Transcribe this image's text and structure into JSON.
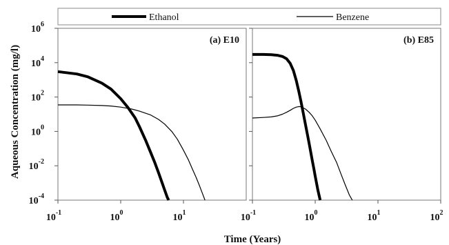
{
  "chart_data": {
    "type": "line",
    "xlabel": "Time (Years)",
    "ylabel": "Aqueous Concentration (mg/l)",
    "x_scale": "log",
    "y_scale": "log",
    "legend": {
      "position": "top",
      "entries": [
        {
          "name": "Ethanol",
          "line": "thick"
        },
        {
          "name": "Benzene",
          "line": "thin"
        }
      ]
    },
    "x_tick_labels": [
      {
        "base": "10",
        "exp": "-1"
      },
      {
        "base": "10",
        "exp": "0"
      },
      {
        "base": "10",
        "exp": "1"
      },
      {
        "base": "10",
        "exp": "2"
      }
    ],
    "y_tick_labels": [
      {
        "base": "10",
        "exp": "6"
      },
      {
        "base": "10",
        "exp": "4"
      },
      {
        "base": "10",
        "exp": "2"
      },
      {
        "base": "10",
        "exp": "0"
      },
      {
        "base": "10",
        "exp": "-2"
      },
      {
        "base": "10",
        "exp": "-4"
      }
    ],
    "panels": [
      {
        "label": "(a) E10",
        "xlim": [
          0.1,
          100
        ],
        "ylim": [
          0.0001,
          1000000
        ],
        "x_ticks": [
          0.1,
          1,
          10
        ],
        "y_ticks": [
          0.0001,
          0.01,
          1,
          100,
          10000,
          1000000
        ],
        "series": [
          {
            "name": "Ethanol",
            "x": [
              0.1,
              0.2,
              0.3,
              0.5,
              0.7,
              1.0,
              1.3,
              1.7,
              2.0,
              2.5,
              3.0,
              3.5,
              4.0,
              4.5,
              5.0,
              5.5,
              5.8
            ],
            "y": [
              3000,
              2200,
              1500,
              650,
              290,
              80,
              25,
              6,
              1.8,
              0.3,
              0.06,
              0.015,
              0.004,
              0.0012,
              0.0004,
              0.00015,
              0.0001
            ]
          },
          {
            "name": "Benzene",
            "x": [
              0.1,
              0.2,
              0.3,
              0.5,
              0.7,
              1.0,
              1.5,
              2.0,
              3.0,
              4.0,
              5.0,
              6.5,
              8.0,
              10.0,
              12.0,
              14.0,
              16.0,
              18.0,
              20.0,
              22.0
            ],
            "y": [
              35,
              35,
              34,
              32,
              30,
              26,
              20,
              15,
              9,
              5,
              2.7,
              1,
              0.35,
              0.08,
              0.022,
              0.006,
              0.002,
              0.0007,
              0.00025,
              0.0001
            ]
          }
        ]
      },
      {
        "label": "(b) E85",
        "xlim": [
          0.1,
          100
        ],
        "ylim": [
          0.0001,
          1000000
        ],
        "x_ticks": [
          0.1,
          1,
          10,
          100
        ],
        "y_ticks": [
          0.0001,
          0.01,
          1,
          100,
          10000,
          1000000
        ],
        "series": [
          {
            "name": "Ethanol",
            "x": [
              0.1,
              0.15,
              0.2,
              0.25,
              0.3,
              0.35,
              0.4,
              0.45,
              0.5,
              0.55,
              0.6,
              0.65,
              0.7,
              0.75,
              0.8,
              0.85,
              0.9,
              0.95,
              1.0,
              1.05,
              1.1,
              1.15,
              1.2
            ],
            "y": [
              30000,
              30000,
              29000,
              27000,
              23000,
              17000,
              9000,
              3500,
              900,
              200,
              45,
              10,
              2.5,
              0.7,
              0.2,
              0.06,
              0.02,
              0.007,
              0.0025,
              0.001,
              0.0004,
              0.0002,
              0.0001
            ]
          },
          {
            "name": "Benzene",
            "x": [
              0.1,
              0.15,
              0.2,
              0.25,
              0.3,
              0.35,
              0.4,
              0.45,
              0.5,
              0.55,
              0.6,
              0.7,
              0.8,
              0.9,
              1.0,
              1.2,
              1.5,
              1.8,
              2.2,
              2.6,
              3.0,
              3.5,
              3.9
            ],
            "y": [
              6,
              6.5,
              7,
              8,
              10,
              13,
              17,
              22,
              26,
              28,
              27,
              20,
              13,
              8,
              4.5,
              1.4,
              0.3,
              0.07,
              0.015,
              0.003,
              0.0008,
              0.0002,
              0.0001
            ]
          }
        ]
      }
    ]
  }
}
